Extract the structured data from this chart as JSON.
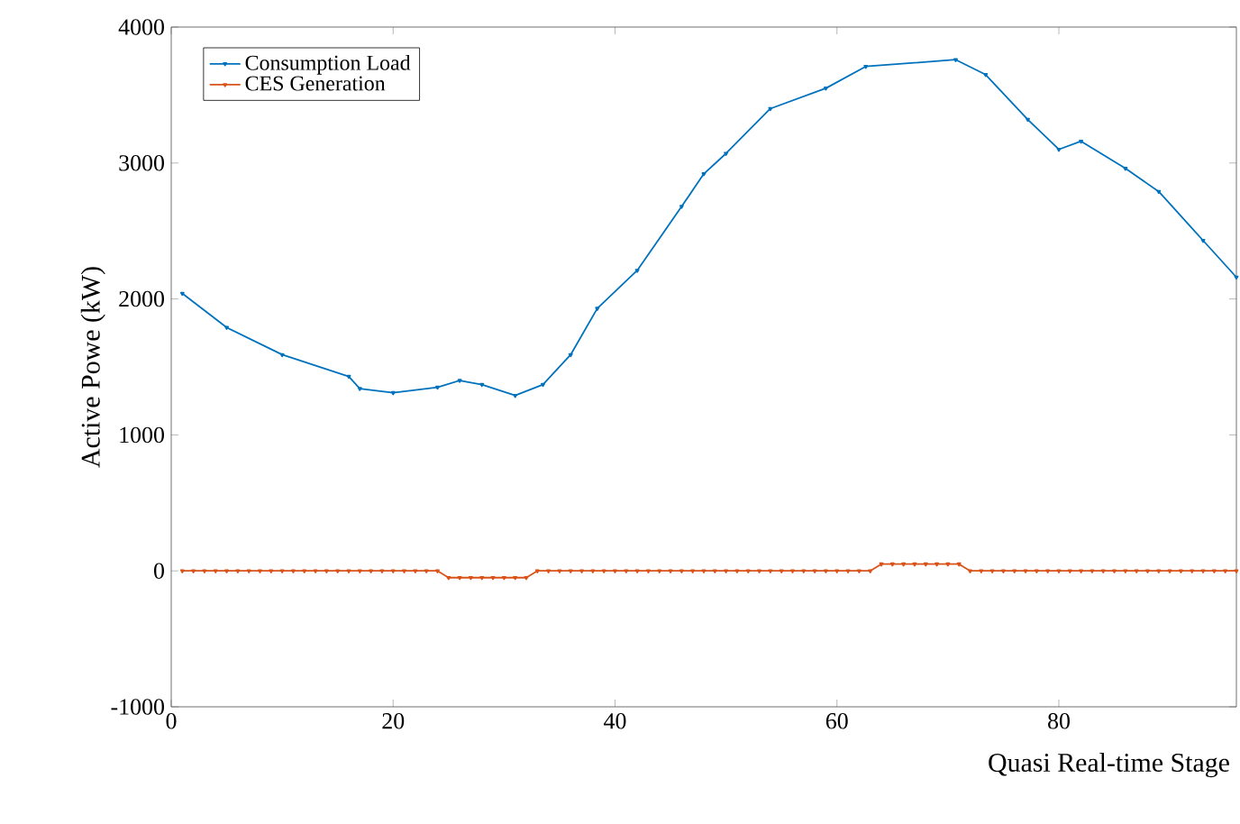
{
  "chart_data": {
    "type": "line",
    "xlabel": "Quasi Real-time Stage",
    "ylabel": "Active Powe (kW)",
    "xlim": [
      0,
      96
    ],
    "ylim": [
      -1000,
      4000
    ],
    "xticks": [
      0,
      20,
      40,
      60,
      80
    ],
    "yticks": [
      -1000,
      0,
      1000,
      2000,
      3000,
      4000
    ],
    "grid": false,
    "legend": "top left",
    "marker": "triangle",
    "line_style": "solid",
    "series": [
      {
        "name": "Consumption Load",
        "color": "#0072bd",
        "x": [
          1,
          5,
          10,
          16,
          17,
          20,
          24,
          26,
          28,
          31,
          33.5,
          36,
          38.4,
          42,
          46,
          48,
          50,
          54,
          59,
          62.6,
          70.7,
          73.4,
          77.2,
          80,
          82,
          86,
          89,
          93,
          96
        ],
        "values": [
          2040,
          1790,
          1590,
          1430,
          1340,
          1310,
          1350,
          1400,
          1370,
          1290,
          1370,
          1590,
          1930,
          2210,
          2680,
          2920,
          3070,
          3400,
          3550,
          3710,
          3760,
          3650,
          3320,
          3100,
          3160,
          2960,
          2790,
          2430,
          2160
        ]
      },
      {
        "name": "CES Generation",
        "color": "#d95319",
        "x": [
          1,
          2,
          3,
          4,
          5,
          6,
          7,
          8,
          9,
          10,
          11,
          12,
          13,
          14,
          15,
          16,
          17,
          18,
          19,
          20,
          21,
          22,
          23,
          24,
          25,
          26,
          27,
          28,
          29,
          30,
          31,
          32,
          33,
          34,
          35,
          36,
          37,
          38,
          39,
          40,
          41,
          42,
          43,
          44,
          45,
          46,
          47,
          48,
          49,
          50,
          51,
          52,
          53,
          54,
          55,
          56,
          57,
          58,
          59,
          60,
          61,
          62,
          63,
          64,
          65,
          66,
          67,
          68,
          69,
          70,
          71,
          72,
          73,
          74,
          75,
          76,
          77,
          78,
          79,
          80,
          81,
          82,
          83,
          84,
          85,
          86,
          87,
          88,
          89,
          90,
          91,
          92,
          93,
          94,
          95,
          96
        ],
        "values": [
          0,
          0,
          0,
          0,
          0,
          0,
          0,
          0,
          0,
          0,
          0,
          0,
          0,
          0,
          0,
          0,
          0,
          0,
          0,
          0,
          0,
          0,
          0,
          0,
          -50,
          -50,
          -50,
          -50,
          -50,
          -50,
          -50,
          -50,
          0,
          0,
          0,
          0,
          0,
          0,
          0,
          0,
          0,
          0,
          0,
          0,
          0,
          0,
          0,
          0,
          0,
          0,
          0,
          0,
          0,
          0,
          0,
          0,
          0,
          0,
          0,
          0,
          0,
          0,
          0,
          50,
          50,
          50,
          50,
          50,
          50,
          50,
          50,
          0,
          0,
          0,
          0,
          0,
          0,
          0,
          0,
          0,
          0,
          0,
          0,
          0,
          0,
          0,
          0,
          0,
          0,
          0,
          0,
          0,
          0,
          0,
          0,
          0
        ]
      }
    ]
  }
}
